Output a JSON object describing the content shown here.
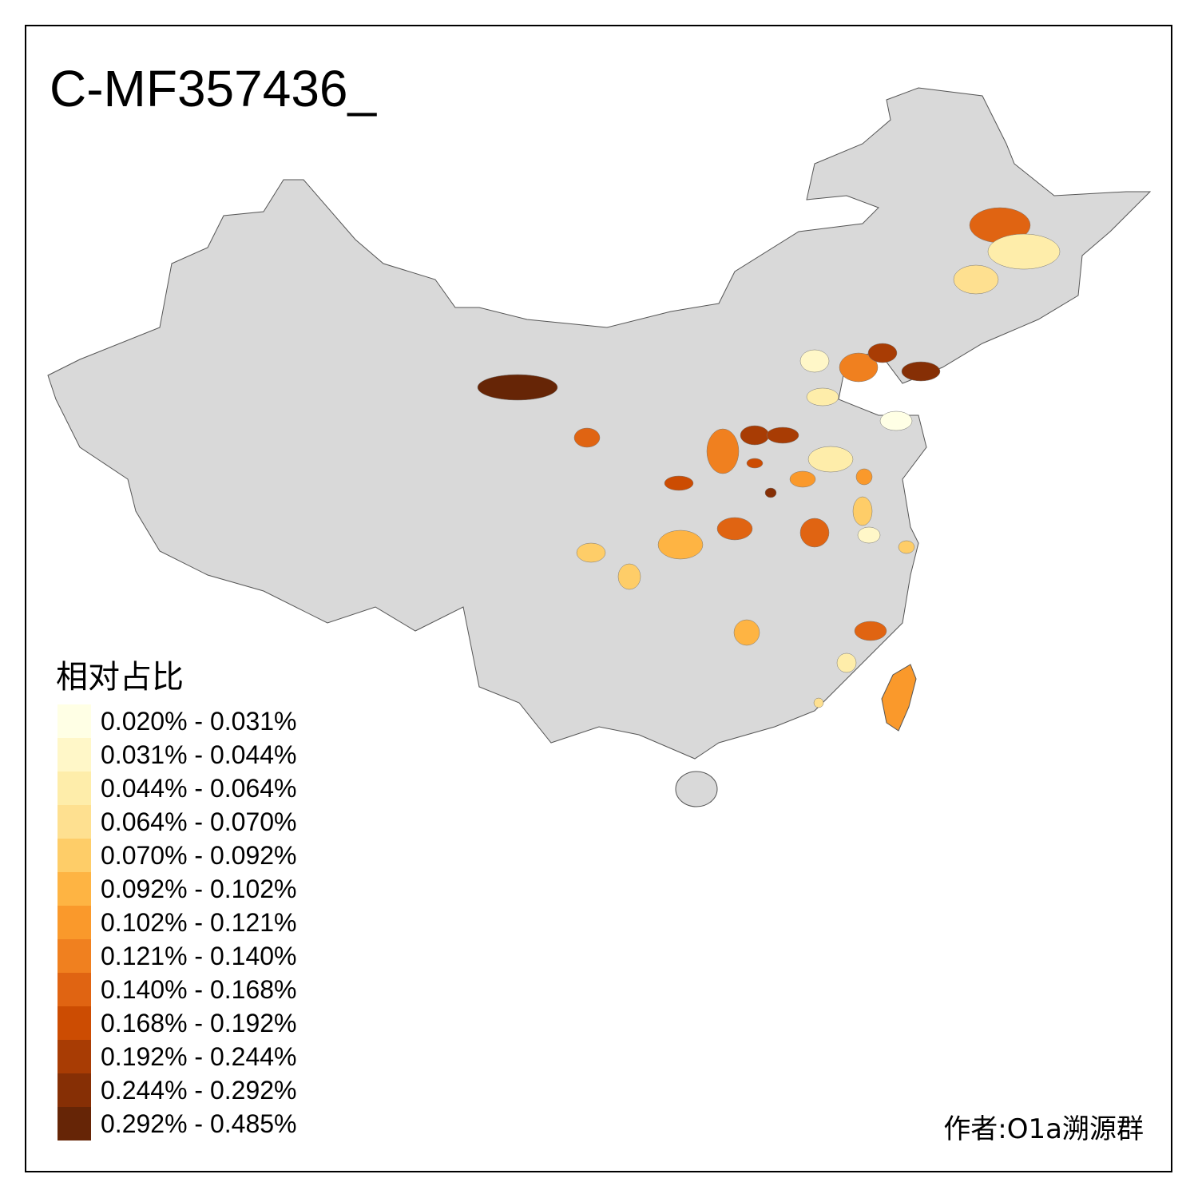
{
  "title": "C-MF357436_",
  "legend": {
    "title": "相对占比",
    "items": [
      {
        "label": "0.020% - 0.031%",
        "color": "#FFFFE5"
      },
      {
        "label": "0.031% - 0.044%",
        "color": "#FFF7C8"
      },
      {
        "label": "0.044% - 0.064%",
        "color": "#FEEDAA"
      },
      {
        "label": "0.064% - 0.070%",
        "color": "#FEE090"
      },
      {
        "label": "0.070% - 0.092%",
        "color": "#FECD68"
      },
      {
        "label": "0.092% - 0.102%",
        "color": "#FEB443"
      },
      {
        "label": "0.102% - 0.121%",
        "color": "#FA992B"
      },
      {
        "label": "0.121% - 0.140%",
        "color": "#F0801F"
      },
      {
        "label": "0.140% - 0.168%",
        "color": "#E06412"
      },
      {
        "label": "0.168% - 0.192%",
        "color": "#CC4C02"
      },
      {
        "label": "0.192% - 0.244%",
        "color": "#A83C04"
      },
      {
        "label": "0.244% - 0.292%",
        "color": "#862F05"
      },
      {
        "label": "0.292% - 0.485%",
        "color": "#662506"
      }
    ]
  },
  "map": {
    "base_color": "#D9D9D9",
    "border_color": "#555555"
  },
  "author": "作者:O1a溯源群"
}
